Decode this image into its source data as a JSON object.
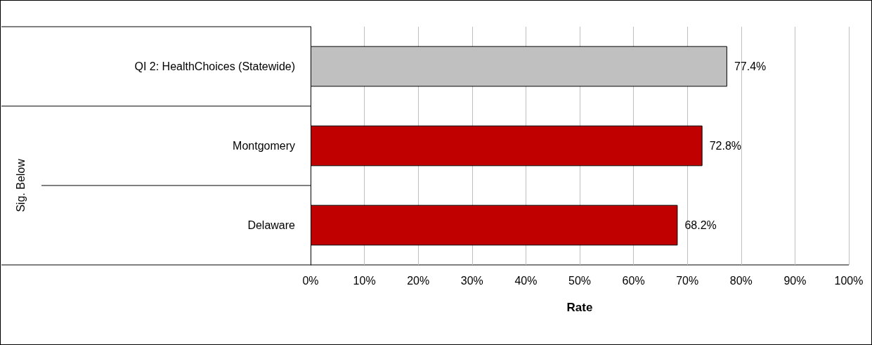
{
  "chart_data": {
    "type": "bar",
    "orientation": "horizontal",
    "xlabel": "Rate",
    "categories": [
      "QI 2: HealthChoices (Statewide)",
      "Montgomery",
      "Delaware"
    ],
    "values": [
      77.4,
      72.8,
      68.2
    ],
    "colors": [
      "#c0c0c0",
      "#c00000",
      "#c00000"
    ],
    "value_labels": [
      "77.4%",
      "72.8%",
      "68.2%"
    ],
    "xlim": [
      0,
      100
    ],
    "xticks": [
      {
        "value": 0,
        "label": "0%"
      },
      {
        "value": 10,
        "label": "10%"
      },
      {
        "value": 20,
        "label": "20%"
      },
      {
        "value": 30,
        "label": "30%"
      },
      {
        "value": 40,
        "label": "40%"
      },
      {
        "value": 50,
        "label": "50%"
      },
      {
        "value": 60,
        "label": "60%"
      },
      {
        "value": 70,
        "label": "70%"
      },
      {
        "value": 80,
        "label": "80%"
      },
      {
        "value": 90,
        "label": "90%"
      },
      {
        "value": 100,
        "label": "100%"
      }
    ],
    "grid": "x",
    "annotations": [
      "Sig. Below"
    ]
  }
}
